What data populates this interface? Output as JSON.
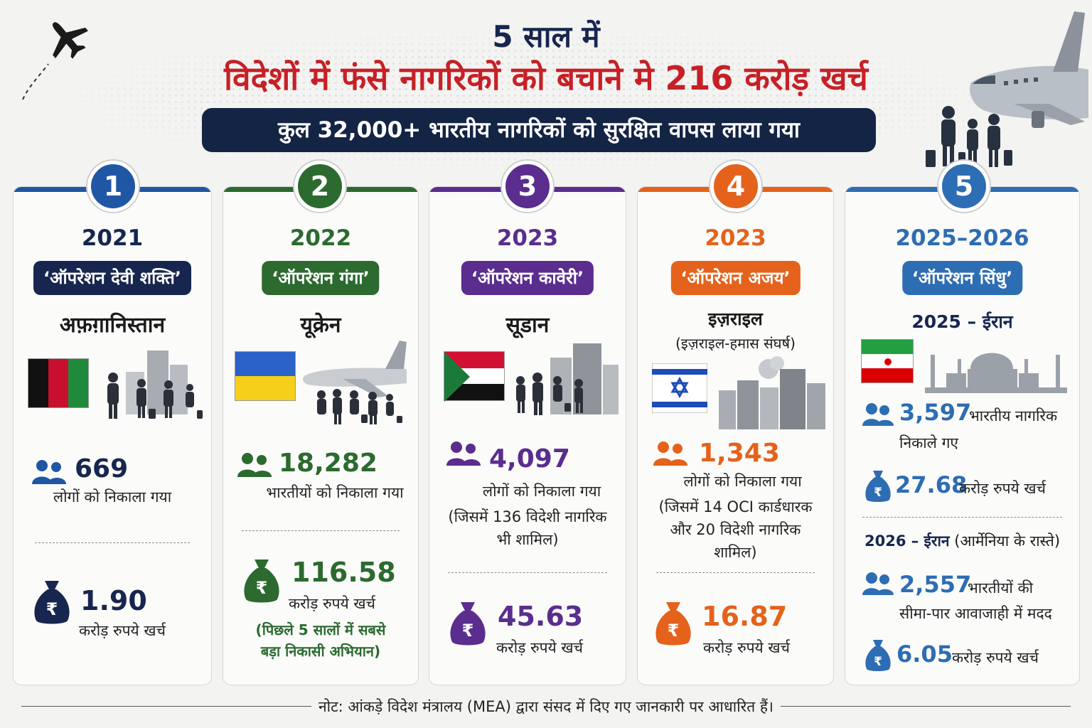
{
  "header": {
    "title_line1": "5 साल में",
    "title_line2": "विदेशों में फंसे नागरिकों को बचाने मे 216 करोड़ खर्च",
    "subtitle": "कुल 32,000+ भारतीय नागरिकों को सुरक्षित वापस लाया गया"
  },
  "colors": {
    "blue": "#1f57a4",
    "green": "#2c6a2f",
    "purple": "#5a2d8f",
    "orange": "#e4621b",
    "sky": "#2d6db3",
    "navy": "#17264f",
    "red": "#c62026"
  },
  "cards": [
    {
      "number": "1",
      "year": "2021",
      "operation": "‘ऑपरेशन देवी शक्ति’",
      "country": "अफ़ग़ानिस्तान",
      "people_count": "669",
      "people_text": "लोगों को निकाला गया",
      "cost": "1.90",
      "cost_text": "करोड़ रुपये खर्च",
      "flag": "afghanistan-flag"
    },
    {
      "number": "2",
      "year": "2022",
      "operation": "‘ऑपरेशन गंगा’",
      "country": "यूक्रेन",
      "people_count": "18,282",
      "people_text": "भारतीयों को निकाला गया",
      "cost": "116.58",
      "cost_text": "करोड़ रुपये खर्च",
      "note_line1": "(पिछले 5 सालों में सबसे",
      "note_line2": "बड़ा निकासी अभियान)",
      "flag": "ukraine-flag"
    },
    {
      "number": "3",
      "year": "2023",
      "operation": "‘ऑपरेशन कावेरी’",
      "country": "सूडान",
      "people_count": "4,097",
      "people_text": "लोगों को निकाला गया",
      "people_note_line1": "(जिसमें 136 विदेशी नागरिक",
      "people_note_line2": "भी शामिल)",
      "cost": "45.63",
      "cost_text": "करोड़ रुपये खर्च",
      "flag": "sudan-flag"
    },
    {
      "number": "4",
      "year": "2023",
      "operation": "‘ऑपरेशन अजय’",
      "country": "इज़राइल",
      "country_sub": "(इज़राइल-हमास संघर्ष)",
      "people_count": "1,343",
      "people_text": "लोगों को निकाला गया",
      "people_note_line1": "(जिसमें 14 OCI कार्डधारक",
      "people_note_line2": "और 20 विदेशी नागरिक",
      "people_note_line3": "शामिल)",
      "cost": "16.87",
      "cost_text": "करोड़ रुपये खर्च",
      "flag": "israel-flag"
    },
    {
      "number": "5",
      "year": "2025–2026",
      "operation": "‘ऑपरेशन सिंधु’",
      "sub1_title": "2025 – ईरान",
      "sub1_people": "3,597",
      "sub1_people_text1": "भारतीय नागरिक",
      "sub1_people_text2": "निकाले गए",
      "sub1_cost": "27.68",
      "sub1_cost_text": "करोड़ रुपये खर्च",
      "sub2_title_bold": "2026 – ईरान",
      "sub2_title_rest": "(आर्मेनिया के रास्ते)",
      "sub2_people": "2,557",
      "sub2_people_text1": "भारतीयों की",
      "sub2_people_text2": "सीमा-पार आवाजाही में मदद",
      "sub2_cost": "6.05",
      "sub2_cost_text": "करोड़ रुपये खर्च",
      "flag": "iran-flag"
    }
  ],
  "footer": {
    "note": "नोट: आंकड़े विदेश मंत्रालय (MEA) द्वारा संसद में दिए गए जानकारी पर आधारित हैं।"
  }
}
